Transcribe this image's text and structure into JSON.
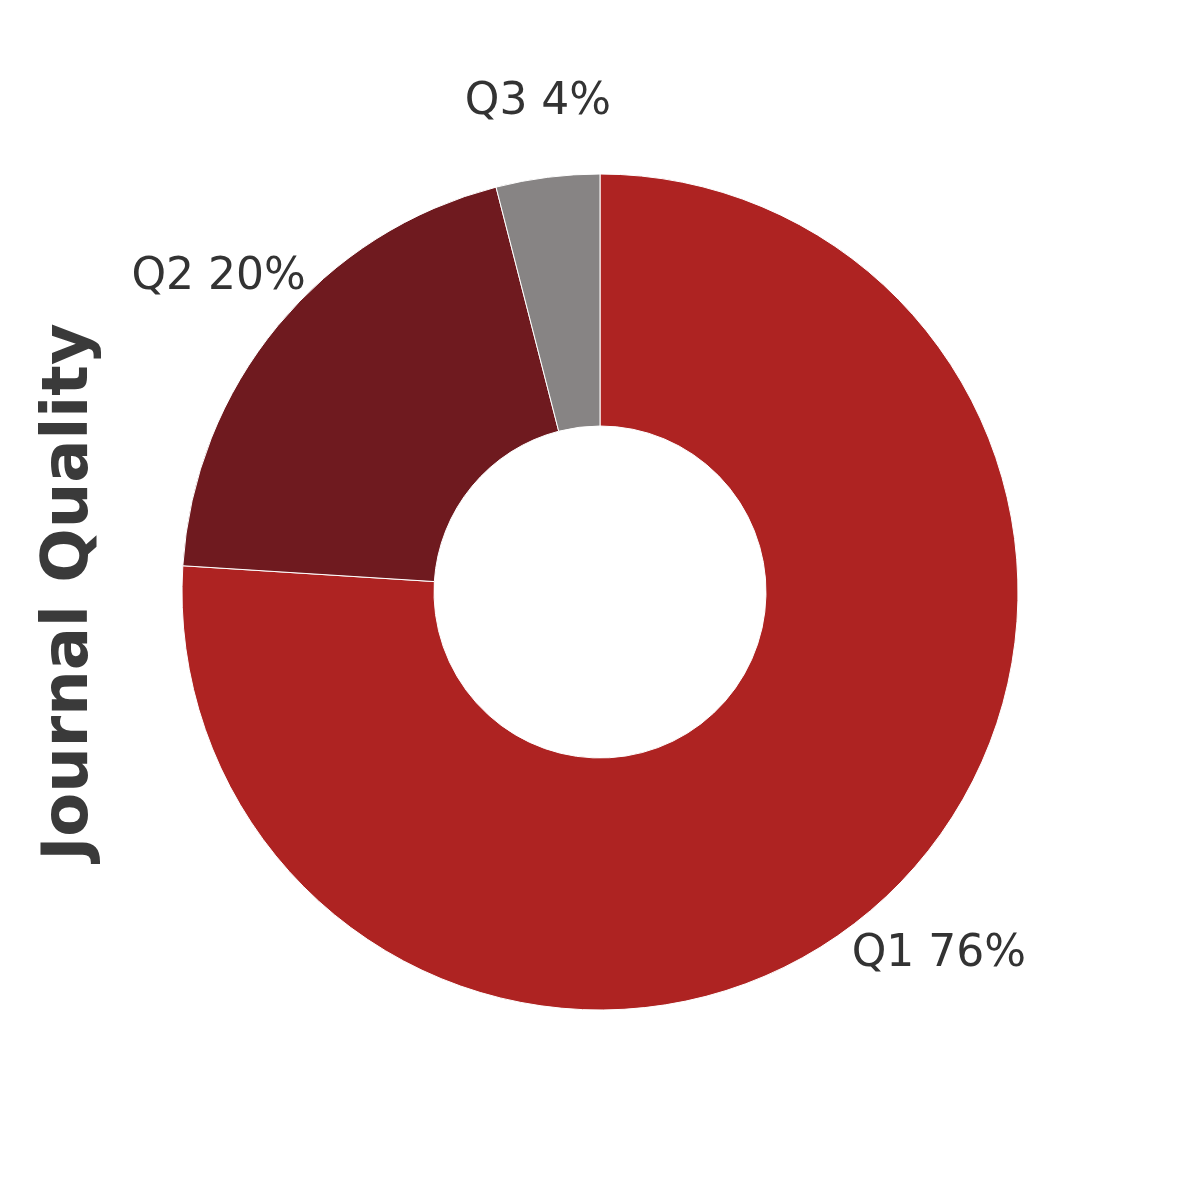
{
  "chart_data": {
    "type": "donut",
    "title": "Journal Quality",
    "categories": [
      "Q1",
      "Q2",
      "Q3"
    ],
    "values": [
      76,
      20,
      4
    ],
    "colors": [
      "#ae2322",
      "#6f1a1f",
      "#878484"
    ],
    "value_labels": [
      "76%",
      "20%",
      "4%"
    ]
  }
}
